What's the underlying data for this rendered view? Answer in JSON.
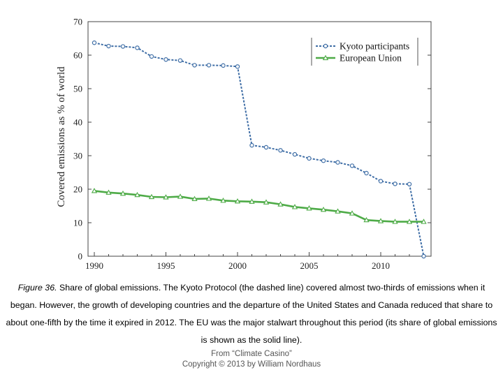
{
  "chart_data": {
    "type": "line",
    "title": "",
    "xlabel": "",
    "ylabel": "Covered emissions as % of world",
    "xlim": [
      1990,
      2013.5
    ],
    "ylim": [
      0,
      70
    ],
    "x_ticks": [
      1990,
      1995,
      2000,
      2005,
      2010
    ],
    "x_tick_labels": [
      "1990",
      "1995",
      "2000",
      "2005",
      "2010"
    ],
    "y_ticks": [
      0,
      10,
      20,
      30,
      40,
      50,
      60,
      70
    ],
    "y_tick_labels": [
      "0",
      "10",
      "20",
      "30",
      "40",
      "50",
      "60",
      "70"
    ],
    "grid": false,
    "legend_position": "top-right",
    "series": [
      {
        "name": "Kyoto participants",
        "style": "dashed",
        "marker": "circle",
        "color": "#3f6ea6",
        "x": [
          1990,
          1991,
          1992,
          1993,
          1994,
          1995,
          1996,
          1997,
          1998,
          1999,
          2000,
          2001,
          2002,
          2003,
          2004,
          2005,
          2006,
          2007,
          2008,
          2009,
          2010,
          2011,
          2012,
          2013
        ],
        "y": [
          63.7,
          62.7,
          62.6,
          62.2,
          59.6,
          58.7,
          58.4,
          57.0,
          57.0,
          56.9,
          56.6,
          33.1,
          32.5,
          31.6,
          30.4,
          29.2,
          28.5,
          28.0,
          27.0,
          24.8,
          22.4,
          21.6,
          21.5,
          0.0
        ]
      },
      {
        "name": "European Union",
        "style": "solid",
        "marker": "triangle",
        "color": "#4eab47",
        "x": [
          1990,
          1991,
          1992,
          1993,
          1994,
          1995,
          1996,
          1997,
          1998,
          1999,
          2000,
          2001,
          2002,
          2003,
          2004,
          2005,
          2006,
          2007,
          2008,
          2009,
          2010,
          2011,
          2012,
          2013
        ],
        "y": [
          19.5,
          19.0,
          18.7,
          18.3,
          17.7,
          17.6,
          17.8,
          17.1,
          17.2,
          16.6,
          16.4,
          16.3,
          16.1,
          15.5,
          14.7,
          14.3,
          13.9,
          13.4,
          12.8,
          10.8,
          10.5,
          10.3,
          10.3,
          10.3
        ]
      }
    ]
  },
  "caption": {
    "figure_label": "Figure 36.",
    "text": " Share of global emissions. The Kyoto Protocol (the dashed line) covered almost two-thirds of emissions when it began. However, the growth of developing countries and the departure of the United States and Canada reduced that share to about one-fifth by the time it expired in 2012. The EU was the major stalwart throughout this period (its share of global emissions is shown as the solid line)."
  },
  "credit": {
    "line1": "From “Climate Casino”",
    "line2": "Copyright © 2013 by William Nordhaus"
  }
}
